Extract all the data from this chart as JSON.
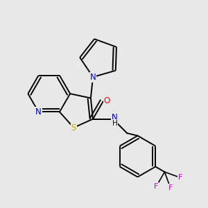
{
  "background_color": "#e8e8e8",
  "bond_color": "#000000",
  "atom_colors": {
    "N": "#0000cc",
    "S": "#ccaa00",
    "O": "#ff0000",
    "F": "#cc00cc",
    "H": "#000000",
    "C": "#000000"
  },
  "figsize": [
    3.0,
    3.0
  ],
  "dpi": 100
}
